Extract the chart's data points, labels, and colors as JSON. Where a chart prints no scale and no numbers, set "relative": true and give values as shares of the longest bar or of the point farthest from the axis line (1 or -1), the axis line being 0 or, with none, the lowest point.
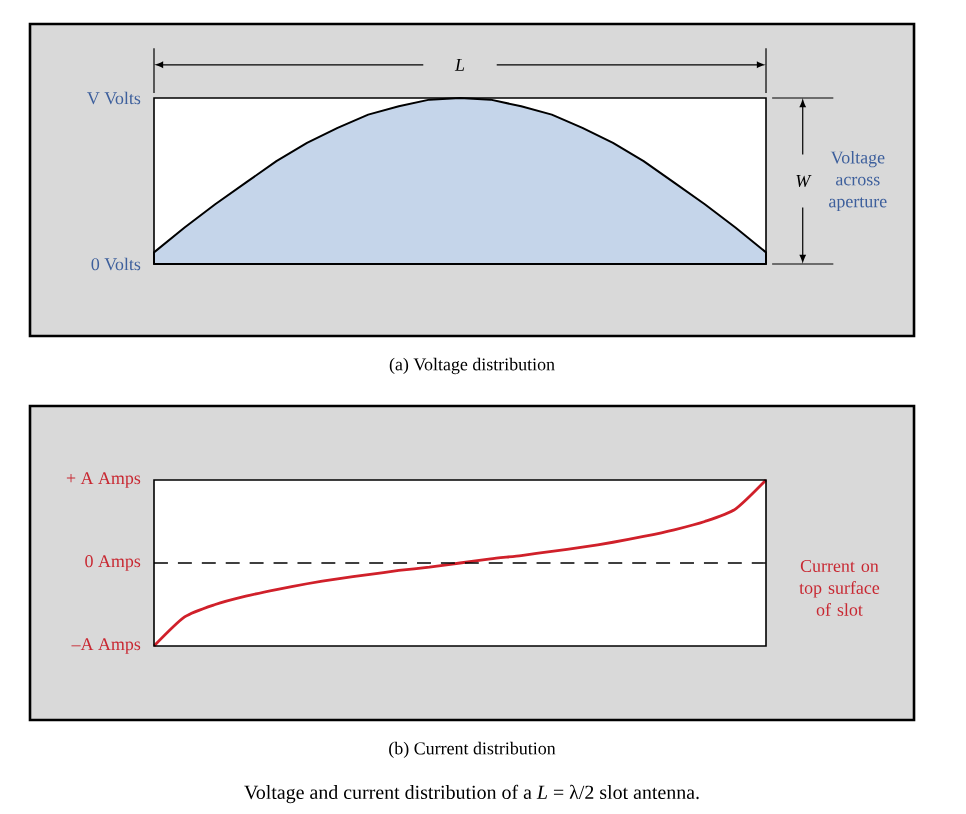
{
  "chart_data": [
    {
      "type": "area",
      "title": "(a) Voltage distribution",
      "relative": true,
      "categories": [
        null,
        null,
        null,
        null,
        null,
        null,
        null,
        null,
        null,
        null,
        null,
        null,
        null,
        null,
        null,
        null,
        null,
        null,
        null,
        null,
        null
      ],
      "values": [
        0.07,
        0.22,
        0.36,
        0.49,
        0.62,
        0.73,
        0.82,
        0.9,
        0.95,
        0.99,
        1.0,
        0.99,
        0.95,
        0.9,
        0.82,
        0.73,
        0.62,
        0.49,
        0.36,
        0.22,
        0.07
      ],
      "color": "#c5d5ea",
      "annotations": [
        "V Volts",
        "0 Volts",
        "L",
        "W",
        "Voltage across aperture"
      ]
    },
    {
      "type": "line",
      "title": "(b) Current distribution",
      "relative": true,
      "categories": [
        null,
        null,
        null,
        null,
        null,
        null,
        null,
        null,
        null,
        null,
        null,
        null,
        null,
        null,
        null,
        null,
        null,
        null,
        null,
        null,
        null
      ],
      "values": [
        -1,
        -0.65,
        -0.5,
        -0.4,
        -0.32,
        -0.25,
        -0.19,
        -0.14,
        -0.09,
        -0.05,
        0,
        0.05,
        0.09,
        0.14,
        0.19,
        0.25,
        0.32,
        0.4,
        0.5,
        0.65,
        1
      ],
      "color": "#d0202a",
      "ref_lines": [
        {
          "axis": "y",
          "value": 0,
          "color": "#000000",
          "line_style": "dashed"
        }
      ],
      "annotations": [
        "+ A Amps",
        "0 Amps",
        "–A Amps",
        "Current on top surface of slot",
        "Voltage and current distribution of a *L* = λ/2 slot antenna."
      ]
    }
  ]
}
